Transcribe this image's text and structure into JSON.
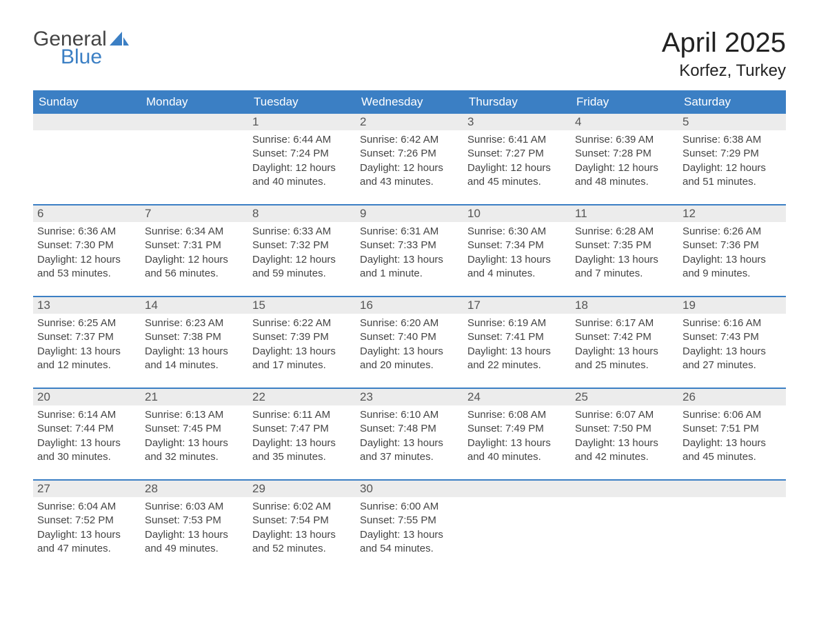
{
  "logo": {
    "line1": "General",
    "line2": "Blue"
  },
  "title": "April 2025",
  "location": "Korfez, Turkey",
  "accent_color": "#3b7fc4",
  "daynum_bg": "#ececec",
  "text_color": "#444444",
  "day_headers": [
    "Sunday",
    "Monday",
    "Tuesday",
    "Wednesday",
    "Thursday",
    "Friday",
    "Saturday"
  ],
  "weeks": [
    [
      {
        "n": "",
        "sunrise": "",
        "sunset": "",
        "daylight": ""
      },
      {
        "n": "",
        "sunrise": "",
        "sunset": "",
        "daylight": ""
      },
      {
        "n": "1",
        "sunrise": "Sunrise: 6:44 AM",
        "sunset": "Sunset: 7:24 PM",
        "daylight": "Daylight: 12 hours and 40 minutes."
      },
      {
        "n": "2",
        "sunrise": "Sunrise: 6:42 AM",
        "sunset": "Sunset: 7:26 PM",
        "daylight": "Daylight: 12 hours and 43 minutes."
      },
      {
        "n": "3",
        "sunrise": "Sunrise: 6:41 AM",
        "sunset": "Sunset: 7:27 PM",
        "daylight": "Daylight: 12 hours and 45 minutes."
      },
      {
        "n": "4",
        "sunrise": "Sunrise: 6:39 AM",
        "sunset": "Sunset: 7:28 PM",
        "daylight": "Daylight: 12 hours and 48 minutes."
      },
      {
        "n": "5",
        "sunrise": "Sunrise: 6:38 AM",
        "sunset": "Sunset: 7:29 PM",
        "daylight": "Daylight: 12 hours and 51 minutes."
      }
    ],
    [
      {
        "n": "6",
        "sunrise": "Sunrise: 6:36 AM",
        "sunset": "Sunset: 7:30 PM",
        "daylight": "Daylight: 12 hours and 53 minutes."
      },
      {
        "n": "7",
        "sunrise": "Sunrise: 6:34 AM",
        "sunset": "Sunset: 7:31 PM",
        "daylight": "Daylight: 12 hours and 56 minutes."
      },
      {
        "n": "8",
        "sunrise": "Sunrise: 6:33 AM",
        "sunset": "Sunset: 7:32 PM",
        "daylight": "Daylight: 12 hours and 59 minutes."
      },
      {
        "n": "9",
        "sunrise": "Sunrise: 6:31 AM",
        "sunset": "Sunset: 7:33 PM",
        "daylight": "Daylight: 13 hours and 1 minute."
      },
      {
        "n": "10",
        "sunrise": "Sunrise: 6:30 AM",
        "sunset": "Sunset: 7:34 PM",
        "daylight": "Daylight: 13 hours and 4 minutes."
      },
      {
        "n": "11",
        "sunrise": "Sunrise: 6:28 AM",
        "sunset": "Sunset: 7:35 PM",
        "daylight": "Daylight: 13 hours and 7 minutes."
      },
      {
        "n": "12",
        "sunrise": "Sunrise: 6:26 AM",
        "sunset": "Sunset: 7:36 PM",
        "daylight": "Daylight: 13 hours and 9 minutes."
      }
    ],
    [
      {
        "n": "13",
        "sunrise": "Sunrise: 6:25 AM",
        "sunset": "Sunset: 7:37 PM",
        "daylight": "Daylight: 13 hours and 12 minutes."
      },
      {
        "n": "14",
        "sunrise": "Sunrise: 6:23 AM",
        "sunset": "Sunset: 7:38 PM",
        "daylight": "Daylight: 13 hours and 14 minutes."
      },
      {
        "n": "15",
        "sunrise": "Sunrise: 6:22 AM",
        "sunset": "Sunset: 7:39 PM",
        "daylight": "Daylight: 13 hours and 17 minutes."
      },
      {
        "n": "16",
        "sunrise": "Sunrise: 6:20 AM",
        "sunset": "Sunset: 7:40 PM",
        "daylight": "Daylight: 13 hours and 20 minutes."
      },
      {
        "n": "17",
        "sunrise": "Sunrise: 6:19 AM",
        "sunset": "Sunset: 7:41 PM",
        "daylight": "Daylight: 13 hours and 22 minutes."
      },
      {
        "n": "18",
        "sunrise": "Sunrise: 6:17 AM",
        "sunset": "Sunset: 7:42 PM",
        "daylight": "Daylight: 13 hours and 25 minutes."
      },
      {
        "n": "19",
        "sunrise": "Sunrise: 6:16 AM",
        "sunset": "Sunset: 7:43 PM",
        "daylight": "Daylight: 13 hours and 27 minutes."
      }
    ],
    [
      {
        "n": "20",
        "sunrise": "Sunrise: 6:14 AM",
        "sunset": "Sunset: 7:44 PM",
        "daylight": "Daylight: 13 hours and 30 minutes."
      },
      {
        "n": "21",
        "sunrise": "Sunrise: 6:13 AM",
        "sunset": "Sunset: 7:45 PM",
        "daylight": "Daylight: 13 hours and 32 minutes."
      },
      {
        "n": "22",
        "sunrise": "Sunrise: 6:11 AM",
        "sunset": "Sunset: 7:47 PM",
        "daylight": "Daylight: 13 hours and 35 minutes."
      },
      {
        "n": "23",
        "sunrise": "Sunrise: 6:10 AM",
        "sunset": "Sunset: 7:48 PM",
        "daylight": "Daylight: 13 hours and 37 minutes."
      },
      {
        "n": "24",
        "sunrise": "Sunrise: 6:08 AM",
        "sunset": "Sunset: 7:49 PM",
        "daylight": "Daylight: 13 hours and 40 minutes."
      },
      {
        "n": "25",
        "sunrise": "Sunrise: 6:07 AM",
        "sunset": "Sunset: 7:50 PM",
        "daylight": "Daylight: 13 hours and 42 minutes."
      },
      {
        "n": "26",
        "sunrise": "Sunrise: 6:06 AM",
        "sunset": "Sunset: 7:51 PM",
        "daylight": "Daylight: 13 hours and 45 minutes."
      }
    ],
    [
      {
        "n": "27",
        "sunrise": "Sunrise: 6:04 AM",
        "sunset": "Sunset: 7:52 PM",
        "daylight": "Daylight: 13 hours and 47 minutes."
      },
      {
        "n": "28",
        "sunrise": "Sunrise: 6:03 AM",
        "sunset": "Sunset: 7:53 PM",
        "daylight": "Daylight: 13 hours and 49 minutes."
      },
      {
        "n": "29",
        "sunrise": "Sunrise: 6:02 AM",
        "sunset": "Sunset: 7:54 PM",
        "daylight": "Daylight: 13 hours and 52 minutes."
      },
      {
        "n": "30",
        "sunrise": "Sunrise: 6:00 AM",
        "sunset": "Sunset: 7:55 PM",
        "daylight": "Daylight: 13 hours and 54 minutes."
      },
      {
        "n": "",
        "sunrise": "",
        "sunset": "",
        "daylight": ""
      },
      {
        "n": "",
        "sunrise": "",
        "sunset": "",
        "daylight": ""
      },
      {
        "n": "",
        "sunrise": "",
        "sunset": "",
        "daylight": ""
      }
    ]
  ]
}
